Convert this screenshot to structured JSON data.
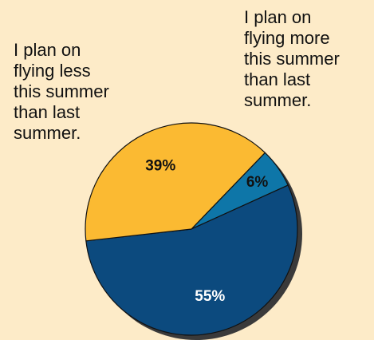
{
  "chart_data": {
    "type": "pie",
    "slices": [
      {
        "label": "I plan on flying more this summer than last summer.",
        "value": 6,
        "display": "6%",
        "color": "#0E76A8",
        "label_color": "#111111"
      },
      {
        "label": "",
        "value": 55,
        "display": "55%",
        "color": "#0C4A7E",
        "label_color": "#FFFFFF"
      },
      {
        "label": "I plan on flying less this summer than last summer.",
        "value": 39,
        "display": "39%",
        "color": "#FBBA32",
        "label_color": "#111111"
      }
    ],
    "annotations": {
      "less": "I plan on\nflying less\nthis summer\nthan last\nsummer.",
      "more": "I plan on\nflying more\nthis summer\nthan last\nsummer."
    },
    "background": "#FDEBC8",
    "shadow_color": "#3A3A3A"
  }
}
